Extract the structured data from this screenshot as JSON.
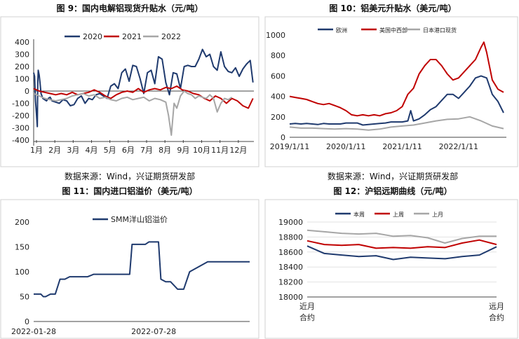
{
  "panels": {
    "tl": {
      "title": "图 9：国内电解铝现货升贴水（元/吨）"
    },
    "tr": {
      "title": "图 10：铝美元升贴水（美元/吨）"
    },
    "bl": {
      "title": "图 11：国内进口铝溢价（美元/吨）"
    },
    "br": {
      "title": "图 12：沪铝远期曲线（元/吨）"
    }
  },
  "sources": {
    "tl": "数据来源：Wind，兴证期货研发部",
    "tr": "数据来源：Wind，兴证期货研发部"
  },
  "colors": {
    "navy": "#1f3a6e",
    "red": "#c00000",
    "gray": "#a6a6a6"
  },
  "chart_data": [
    {
      "id": "tl",
      "type": "line",
      "title": "图 9：国内电解铝现货升贴水（元/吨）",
      "categories": [
        "1月",
        "2月",
        "3月",
        "4月",
        "5月",
        "6月",
        "7月",
        "8月",
        "9月",
        "10月",
        "11月",
        "12月"
      ],
      "ylim": [
        -400,
        400
      ],
      "yticks": [
        400,
        300,
        200,
        100,
        0,
        -100,
        -200,
        -300,
        -400
      ],
      "legend": "top-center",
      "series": [
        {
          "name": "2020",
          "color": "#1f3a6e",
          "x": [
            0,
            0.05,
            0.1,
            0.15,
            0.2,
            0.22,
            0.25,
            0.3,
            0.35,
            0.4,
            0.5,
            0.6,
            0.7,
            0.8,
            0.9,
            1.0,
            1.2,
            1.4,
            1.6,
            1.8,
            2.0,
            2.2,
            2.4,
            2.6,
            2.8,
            3.0,
            3.2,
            3.4,
            3.6,
            3.8,
            4.0,
            4.2,
            4.4,
            4.6,
            4.8,
            5.0,
            5.2,
            5.4,
            5.6,
            5.8,
            6.0,
            6.2,
            6.4,
            6.6,
            6.8,
            7.0,
            7.2,
            7.4,
            7.6,
            7.8,
            8.0,
            8.2,
            8.4,
            8.6,
            8.8,
            9.0,
            9.2,
            9.4,
            9.6,
            9.8,
            10.0,
            10.2,
            10.4,
            10.6,
            10.8,
            11.0,
            11.2,
            11.4,
            11.6,
            11.8,
            11.95
          ],
          "y": [
            150,
            120,
            -80,
            -180,
            -290,
            50,
            170,
            130,
            60,
            -20,
            -60,
            -70,
            -80,
            -60,
            -50,
            -80,
            -90,
            -100,
            -70,
            -80,
            -120,
            -110,
            -60,
            -40,
            -100,
            -60,
            -70,
            -30,
            -20,
            -40,
            -60,
            40,
            60,
            20,
            150,
            180,
            80,
            210,
            200,
            100,
            -20,
            150,
            170,
            60,
            280,
            260,
            70,
            -30,
            150,
            140,
            20,
            200,
            210,
            200,
            200,
            260,
            340,
            280,
            300,
            200,
            170,
            320,
            200,
            160,
            150,
            190,
            120,
            180,
            220,
            250,
            70
          ]
        },
        {
          "name": "2021",
          "color": "#c00000",
          "x": [
            0,
            0.3,
            0.6,
            0.9,
            1.2,
            1.5,
            1.8,
            2.1,
            2.4,
            2.7,
            3.0,
            3.3,
            3.6,
            3.9,
            4.2,
            4.5,
            4.8,
            5.1,
            5.4,
            5.7,
            6.0,
            6.3,
            6.6,
            6.9,
            7.2,
            7.5,
            7.8,
            8.1,
            8.4,
            8.7,
            9.0,
            9.3,
            9.6,
            9.9,
            10.2,
            10.5,
            10.8,
            11.1,
            11.4,
            11.7,
            11.95
          ],
          "y": [
            20,
            0,
            -10,
            -20,
            -30,
            -20,
            -30,
            -10,
            -30,
            -20,
            -10,
            10,
            -10,
            -40,
            -60,
            -30,
            -10,
            0,
            -10,
            20,
            -10,
            10,
            20,
            10,
            30,
            20,
            40,
            10,
            0,
            -20,
            -30,
            -60,
            -80,
            -40,
            -60,
            -100,
            -60,
            -80,
            -120,
            -140,
            -60
          ]
        },
        {
          "name": "2022",
          "color": "#a6a6a6",
          "x": [
            0,
            0.3,
            0.6,
            0.9,
            1.2,
            1.5,
            1.8,
            2.1,
            2.4,
            2.7,
            3.0,
            3.3,
            3.6,
            3.9,
            4.2,
            4.5,
            4.8,
            5.1,
            5.4,
            5.7,
            6.0,
            6.3,
            6.6,
            6.9,
            7.2,
            7.35,
            7.5,
            7.65,
            7.8,
            8.0,
            8.2,
            8.4,
            8.6,
            8.8,
            9.0,
            9.2,
            9.4,
            9.6,
            9.8,
            10.0,
            10.2,
            10.4,
            10.6,
            10.8
          ],
          "y": [
            -20,
            -40,
            -60,
            -70,
            -80,
            -70,
            -60,
            -40,
            -30,
            -20,
            -40,
            -30,
            -60,
            -50,
            -70,
            -80,
            -60,
            -50,
            -70,
            -60,
            -50,
            -80,
            -60,
            -70,
            -90,
            -200,
            -360,
            -100,
            -140,
            -40,
            0,
            -20,
            -30,
            -60,
            -40,
            -50,
            -60,
            -30,
            -60,
            -170,
            -100,
            -60,
            -70,
            -50
          ]
        }
      ]
    },
    {
      "id": "tr",
      "type": "line",
      "title": "图 10：铝美元升贴水（美元/吨）",
      "categories": [
        "2019/1/11",
        "2020/1/11",
        "2021/1/11",
        "2022/1/11"
      ],
      "ylim": [
        0,
        1000
      ],
      "yticks": [
        1000,
        800,
        600,
        400,
        200,
        0
      ],
      "legend": "top-left",
      "series": [
        {
          "name": "欧洲",
          "color": "#1f3a6e",
          "x": [
            0,
            0.1,
            0.2,
            0.3,
            0.4,
            0.5,
            0.6,
            0.7,
            0.8,
            0.9,
            1.0,
            1.1,
            1.2,
            1.3,
            1.4,
            1.5,
            1.6,
            1.7,
            1.8,
            1.9,
            2.0,
            2.1,
            2.15,
            2.2,
            2.25,
            2.3,
            2.4,
            2.5,
            2.6,
            2.7,
            2.8,
            2.9,
            3.0,
            3.1,
            3.2,
            3.3,
            3.4,
            3.5,
            3.6,
            3.7,
            3.8
          ],
          "y": [
            130,
            135,
            130,
            135,
            130,
            125,
            135,
            130,
            130,
            130,
            140,
            140,
            140,
            120,
            125,
            130,
            135,
            140,
            150,
            150,
            150,
            160,
            260,
            160,
            170,
            180,
            220,
            270,
            300,
            360,
            420,
            420,
            380,
            440,
            500,
            580,
            600,
            580,
            420,
            350,
            240
          ]
        },
        {
          "name": "美国中西部",
          "color": "#c00000",
          "x": [
            0,
            0.1,
            0.2,
            0.3,
            0.4,
            0.5,
            0.6,
            0.7,
            0.8,
            0.9,
            1.0,
            1.1,
            1.2,
            1.3,
            1.4,
            1.5,
            1.6,
            1.7,
            1.8,
            1.9,
            2.0,
            2.1,
            2.2,
            2.3,
            2.4,
            2.5,
            2.6,
            2.7,
            2.8,
            2.9,
            3.0,
            3.1,
            3.2,
            3.3,
            3.4,
            3.45,
            3.5,
            3.6,
            3.7,
            3.8
          ],
          "y": [
            400,
            390,
            380,
            370,
            350,
            330,
            320,
            330,
            310,
            290,
            260,
            220,
            210,
            220,
            210,
            220,
            210,
            230,
            240,
            260,
            300,
            420,
            480,
            620,
            700,
            760,
            760,
            700,
            620,
            560,
            580,
            640,
            700,
            760,
            880,
            930,
            830,
            560,
            470,
            440
          ]
        },
        {
          "name": "日本港口现货",
          "color": "#a6a6a6",
          "x": [
            0,
            0.2,
            0.4,
            0.6,
            0.8,
            1.0,
            1.2,
            1.4,
            1.6,
            1.8,
            2.0,
            2.2,
            2.4,
            2.6,
            2.8,
            3.0,
            3.2,
            3.4,
            3.6,
            3.8
          ],
          "y": [
            100,
            90,
            90,
            85,
            80,
            85,
            80,
            70,
            80,
            100,
            110,
            120,
            140,
            160,
            175,
            180,
            200,
            160,
            110,
            85
          ]
        }
      ]
    },
    {
      "id": "bl",
      "type": "line",
      "title": "图 11：国内进口铝溢价（美元/吨）",
      "categories": [
        "2022-01-28",
        "2022-07-28"
      ],
      "ylim": [
        0,
        200
      ],
      "yticks": [
        200,
        150,
        100,
        50,
        0
      ],
      "legend": "top-left",
      "series": [
        {
          "name": "SMM洋山铝溢价",
          "color": "#1f3a6e",
          "x": [
            0,
            0.06,
            0.08,
            0.1,
            0.14,
            0.15,
            0.18,
            0.22,
            0.26,
            0.3,
            0.45,
            0.5,
            0.6,
            0.7,
            0.75,
            0.8,
            0.82,
            0.85,
            0.9,
            0.93,
            0.96,
            1.0,
            1.04,
            1.06,
            1.1,
            1.14,
            1.2,
            1.25,
            1.3,
            1.45,
            1.6,
            1.7,
            1.8
          ],
          "y": [
            55,
            55,
            50,
            50,
            55,
            55,
            55,
            85,
            85,
            90,
            90,
            95,
            95,
            95,
            95,
            95,
            155,
            155,
            155,
            155,
            160,
            160,
            160,
            85,
            80,
            80,
            65,
            65,
            100,
            120,
            120,
            120,
            120
          ]
        }
      ]
    },
    {
      "id": "br",
      "type": "line",
      "title": "图 12：沪铝远期曲线（元/吨）",
      "categories": [
        "近月合约",
        "",
        "",
        "",
        "",
        "",
        "",
        "",
        "",
        "",
        "",
        "远月合约"
      ],
      "ylim": [
        18000,
        19000
      ],
      "yticks": [
        19000,
        18800,
        18600,
        18400,
        18200,
        18000
      ],
      "legend": "top-center",
      "series": [
        {
          "name": "本周",
          "color": "#1f3a6e",
          "values": [
            18680,
            18580,
            18560,
            18540,
            18550,
            18500,
            18530,
            18520,
            18510,
            18540,
            18560,
            18670
          ]
        },
        {
          "name": "上周",
          "color": "#c00000",
          "values": [
            18750,
            18700,
            18690,
            18700,
            18650,
            18660,
            18650,
            18670,
            18660,
            18720,
            18760,
            18700
          ]
        },
        {
          "name": "上月",
          "color": "#a6a6a6",
          "values": [
            18890,
            18870,
            18850,
            18840,
            18850,
            18810,
            18820,
            18790,
            18720,
            18780,
            18810,
            18810
          ]
        }
      ]
    }
  ]
}
